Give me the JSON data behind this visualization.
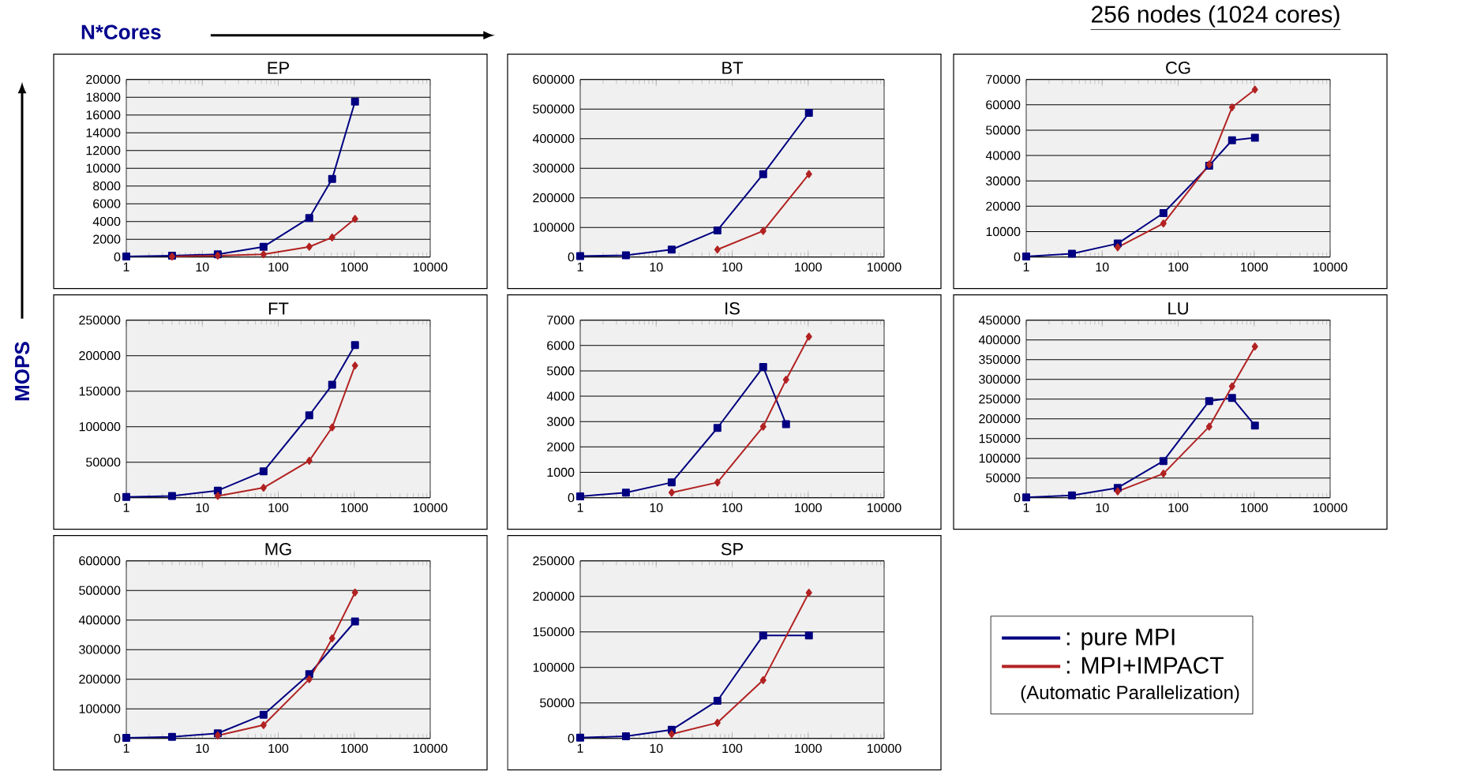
{
  "chart_data": [
    {
      "type": "line",
      "title": "EP",
      "xlabel": "N*Cores",
      "ylabel": "MOPS",
      "annotations": [
        "256 nodes (1024 cores)"
      ],
      "log": "x",
      "grid": "y",
      "xlim": [
        1,
        10000
      ],
      "xticks": [
        1,
        10,
        100,
        1000,
        10000
      ],
      "ylim": [
        0,
        20000
      ],
      "yticks": [
        0,
        2000,
        4000,
        6000,
        8000,
        10000,
        12000,
        14000,
        16000,
        18000,
        20000
      ],
      "series": [
        {
          "color": "#000080",
          "marker": "square",
          "x": [
            1,
            4,
            16,
            64,
            256,
            512,
            1024
          ],
          "values": [
            50,
            150,
            300,
            1150,
            4400,
            8800,
            17500
          ]
        },
        {
          "color": "#b22222",
          "marker": "diamond",
          "x": [
            4,
            16,
            64,
            256,
            512,
            1024
          ],
          "values": [
            50,
            150,
            300,
            1150,
            2200,
            4300
          ]
        }
      ]
    },
    {
      "type": "line",
      "title": "BT",
      "log": "x",
      "grid": "y",
      "xlim": [
        1,
        10000
      ],
      "xticks": [
        1,
        10,
        100,
        1000,
        10000
      ],
      "ylim": [
        0,
        600000
      ],
      "yticks": [
        0,
        100000,
        200000,
        300000,
        400000,
        500000,
        600000
      ],
      "series": [
        {
          "color": "#000080",
          "marker": "square",
          "x": [
            1,
            4,
            16,
            64,
            256,
            1024
          ],
          "values": [
            3000,
            6000,
            25000,
            90000,
            280000,
            487000
          ]
        },
        {
          "color": "#b22222",
          "marker": "diamond",
          "x": [
            64,
            256,
            1024
          ],
          "values": [
            25000,
            88000,
            280000
          ]
        }
      ]
    },
    {
      "type": "line",
      "title": "CG",
      "log": "x",
      "grid": "y",
      "xlim": [
        1,
        10000
      ],
      "xticks": [
        1,
        10,
        100,
        1000,
        10000
      ],
      "ylim": [
        0,
        70000
      ],
      "yticks": [
        0,
        10000,
        20000,
        30000,
        40000,
        50000,
        60000,
        70000
      ],
      "series": [
        {
          "color": "#000080",
          "marker": "square",
          "x": [
            1,
            4,
            16,
            64,
            256,
            512,
            1024
          ],
          "values": [
            200,
            1300,
            5300,
            17300,
            36000,
            46000,
            47000
          ]
        },
        {
          "color": "#b22222",
          "marker": "diamond",
          "x": [
            16,
            64,
            256,
            512,
            1024
          ],
          "values": [
            3800,
            13200,
            36500,
            59000,
            66000
          ]
        }
      ]
    },
    {
      "type": "line",
      "title": "FT",
      "log": "x",
      "grid": "y",
      "xlim": [
        1,
        10000
      ],
      "xticks": [
        1,
        10,
        100,
        1000,
        10000
      ],
      "ylim": [
        0,
        250000
      ],
      "yticks": [
        0,
        50000,
        100000,
        150000,
        200000,
        250000
      ],
      "series": [
        {
          "color": "#000080",
          "marker": "square",
          "x": [
            1,
            4,
            16,
            64,
            256,
            512,
            1024
          ],
          "values": [
            1000,
            2500,
            10000,
            37000,
            116000,
            159000,
            215000
          ]
        },
        {
          "color": "#b22222",
          "marker": "diamond",
          "x": [
            16,
            64,
            256,
            512,
            1024
          ],
          "values": [
            2500,
            14000,
            52000,
            99000,
            186000
          ]
        }
      ]
    },
    {
      "type": "line",
      "title": "IS",
      "log": "x",
      "grid": "y",
      "xlim": [
        1,
        10000
      ],
      "xticks": [
        1,
        10,
        100,
        1000,
        10000
      ],
      "ylim": [
        0,
        7000
      ],
      "yticks": [
        0,
        1000,
        2000,
        3000,
        4000,
        5000,
        6000,
        7000
      ],
      "series": [
        {
          "color": "#000080",
          "marker": "square",
          "x": [
            1,
            4,
            16,
            64,
            256,
            512
          ],
          "values": [
            50,
            200,
            600,
            2750,
            5150,
            2900
          ]
        },
        {
          "color": "#b22222",
          "marker": "diamond",
          "x": [
            16,
            64,
            256,
            512,
            1024
          ],
          "values": [
            200,
            600,
            2800,
            4650,
            6350
          ]
        }
      ]
    },
    {
      "type": "line",
      "title": "LU",
      "log": "x",
      "grid": "y",
      "xlim": [
        1,
        10000
      ],
      "xticks": [
        1,
        10,
        100,
        1000,
        10000
      ],
      "ylim": [
        0,
        450000
      ],
      "yticks": [
        0,
        50000,
        100000,
        150000,
        200000,
        250000,
        300000,
        350000,
        400000,
        450000
      ],
      "series": [
        {
          "color": "#000080",
          "marker": "square",
          "x": [
            1,
            4,
            16,
            64,
            256,
            512,
            1024
          ],
          "values": [
            1000,
            6000,
            25000,
            93000,
            245000,
            253000,
            183000
          ]
        },
        {
          "color": "#b22222",
          "marker": "diamond",
          "x": [
            16,
            64,
            256,
            512,
            1024
          ],
          "values": [
            16000,
            61000,
            180000,
            282000,
            383000
          ]
        }
      ]
    },
    {
      "type": "line",
      "title": "MG",
      "log": "x",
      "grid": "y",
      "xlim": [
        1,
        10000
      ],
      "xticks": [
        1,
        10,
        100,
        1000,
        10000
      ],
      "ylim": [
        0,
        600000
      ],
      "yticks": [
        0,
        100000,
        200000,
        300000,
        400000,
        500000,
        600000
      ],
      "series": [
        {
          "color": "#000080",
          "marker": "square",
          "x": [
            1,
            4,
            16,
            64,
            256,
            1024
          ],
          "values": [
            2000,
            5000,
            17000,
            80000,
            217000,
            395000
          ]
        },
        {
          "color": "#b22222",
          "marker": "diamond",
          "x": [
            16,
            64,
            256,
            512,
            1024
          ],
          "values": [
            10000,
            45000,
            200000,
            338000,
            493000
          ]
        }
      ]
    },
    {
      "type": "line",
      "title": "SP",
      "log": "x",
      "grid": "y",
      "xlim": [
        1,
        10000
      ],
      "xticks": [
        1,
        10,
        100,
        1000,
        10000
      ],
      "ylim": [
        0,
        250000
      ],
      "yticks": [
        0,
        50000,
        100000,
        150000,
        200000,
        250000
      ],
      "legend": "right",
      "annotations": [
        "(Automatic Parallelization)"
      ],
      "series": [
        {
          "name": ": pure MPI",
          "color": "#000080",
          "marker": "square",
          "x": [
            1,
            4,
            16,
            64,
            256,
            1024
          ],
          "values": [
            1000,
            3000,
            12000,
            53000,
            145000,
            145000
          ]
        },
        {
          "name": ": MPI+IMPACT",
          "color": "#b22222",
          "marker": "diamond",
          "x": [
            16,
            64,
            256,
            1024
          ],
          "values": [
            6000,
            22000,
            82000,
            205000
          ]
        }
      ]
    }
  ]
}
